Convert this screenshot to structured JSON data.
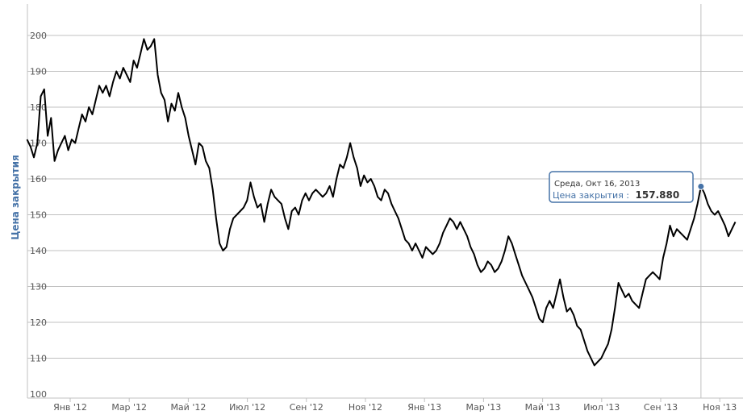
{
  "chart_data": {
    "type": "line",
    "ylabel": "Цена закрытия",
    "ylim": [
      100,
      210
    ],
    "y_ticks": [
      100,
      110,
      120,
      130,
      140,
      150,
      160,
      170,
      180,
      190,
      200
    ],
    "x_ticks": [
      "Янв '12",
      "Мар '12",
      "Май '12",
      "Июл '12",
      "Сен '12",
      "Ноя '12",
      "Янв '13",
      "Мар '13",
      "Май '13",
      "Июл '13",
      "Сен '13",
      "Ноя '13"
    ],
    "grid": true,
    "line_color": "#000000",
    "series": [
      {
        "values": [
          [
            0,
            171
          ],
          [
            1,
            169
          ],
          [
            2,
            166
          ],
          [
            3,
            170
          ],
          [
            4,
            183
          ],
          [
            5,
            185
          ],
          [
            6,
            172
          ],
          [
            7,
            177
          ],
          [
            8,
            165
          ],
          [
            9,
            168
          ],
          [
            10,
            170
          ],
          [
            11,
            172
          ],
          [
            12,
            168
          ],
          [
            13,
            171
          ],
          [
            14,
            170
          ],
          [
            15,
            174
          ],
          [
            16,
            178
          ],
          [
            17,
            176
          ],
          [
            18,
            180
          ],
          [
            19,
            178
          ],
          [
            20,
            182
          ],
          [
            21,
            186
          ],
          [
            22,
            184
          ],
          [
            23,
            186
          ],
          [
            24,
            183
          ],
          [
            25,
            187
          ],
          [
            26,
            190
          ],
          [
            27,
            188
          ],
          [
            28,
            191
          ],
          [
            29,
            189
          ],
          [
            30,
            187
          ],
          [
            31,
            193
          ],
          [
            32,
            191
          ],
          [
            33,
            195
          ],
          [
            34,
            199
          ],
          [
            35,
            196
          ],
          [
            36,
            197
          ],
          [
            37,
            199
          ],
          [
            38,
            189
          ],
          [
            39,
            184
          ],
          [
            40,
            182
          ],
          [
            41,
            176
          ],
          [
            42,
            181
          ],
          [
            43,
            179
          ],
          [
            44,
            184
          ],
          [
            45,
            180
          ],
          [
            46,
            177
          ],
          [
            47,
            172
          ],
          [
            48,
            168
          ],
          [
            49,
            164
          ],
          [
            50,
            170
          ],
          [
            51,
            169
          ],
          [
            52,
            165
          ],
          [
            53,
            163
          ],
          [
            54,
            157
          ],
          [
            55,
            149
          ],
          [
            56,
            142
          ],
          [
            57,
            140
          ],
          [
            58,
            141
          ],
          [
            59,
            146
          ],
          [
            60,
            149
          ],
          [
            61,
            150
          ],
          [
            62,
            151
          ],
          [
            63,
            152
          ],
          [
            64,
            154
          ],
          [
            65,
            159
          ],
          [
            66,
            155
          ],
          [
            67,
            152
          ],
          [
            68,
            153
          ],
          [
            69,
            148
          ],
          [
            70,
            153
          ],
          [
            71,
            157
          ],
          [
            72,
            155
          ],
          [
            73,
            154
          ],
          [
            74,
            153
          ],
          [
            75,
            149
          ],
          [
            76,
            146
          ],
          [
            77,
            151
          ],
          [
            78,
            152
          ],
          [
            79,
            150
          ],
          [
            80,
            154
          ],
          [
            81,
            156
          ],
          [
            82,
            154
          ],
          [
            83,
            156
          ],
          [
            84,
            157
          ],
          [
            85,
            156
          ],
          [
            86,
            155
          ],
          [
            87,
            156
          ],
          [
            88,
            158
          ],
          [
            89,
            155
          ],
          [
            90,
            160
          ],
          [
            91,
            164
          ],
          [
            92,
            163
          ],
          [
            93,
            166
          ],
          [
            94,
            170
          ],
          [
            95,
            166
          ],
          [
            96,
            163
          ],
          [
            97,
            158
          ],
          [
            98,
            161
          ],
          [
            99,
            159
          ],
          [
            100,
            160
          ],
          [
            101,
            158
          ],
          [
            102,
            155
          ],
          [
            103,
            154
          ],
          [
            104,
            157
          ],
          [
            105,
            156
          ],
          [
            106,
            153
          ],
          [
            107,
            151
          ],
          [
            108,
            149
          ],
          [
            109,
            146
          ],
          [
            110,
            143
          ],
          [
            111,
            142
          ],
          [
            112,
            140
          ],
          [
            113,
            142
          ],
          [
            114,
            140
          ],
          [
            115,
            138
          ],
          [
            116,
            141
          ],
          [
            117,
            140
          ],
          [
            118,
            139
          ],
          [
            119,
            140
          ],
          [
            120,
            142
          ],
          [
            121,
            145
          ],
          [
            122,
            147
          ],
          [
            123,
            149
          ],
          [
            124,
            148
          ],
          [
            125,
            146
          ],
          [
            126,
            148
          ],
          [
            127,
            146
          ],
          [
            128,
            144
          ],
          [
            129,
            141
          ],
          [
            130,
            139
          ],
          [
            131,
            136
          ],
          [
            132,
            134
          ],
          [
            133,
            135
          ],
          [
            134,
            137
          ],
          [
            135,
            136
          ],
          [
            136,
            134
          ],
          [
            137,
            135
          ],
          [
            138,
            137
          ],
          [
            139,
            140
          ],
          [
            140,
            144
          ],
          [
            141,
            142
          ],
          [
            142,
            139
          ],
          [
            143,
            136
          ],
          [
            144,
            133
          ],
          [
            145,
            131
          ],
          [
            146,
            129
          ],
          [
            147,
            127
          ],
          [
            148,
            124
          ],
          [
            149,
            121
          ],
          [
            150,
            120
          ],
          [
            151,
            124
          ],
          [
            152,
            126
          ],
          [
            153,
            124
          ],
          [
            154,
            128
          ],
          [
            155,
            132
          ],
          [
            156,
            127
          ],
          [
            157,
            123
          ],
          [
            158,
            124
          ],
          [
            159,
            122
          ],
          [
            160,
            119
          ],
          [
            161,
            118
          ],
          [
            162,
            115
          ],
          [
            163,
            112
          ],
          [
            164,
            110
          ],
          [
            165,
            108
          ],
          [
            166,
            109
          ],
          [
            167,
            110
          ],
          [
            168,
            112
          ],
          [
            169,
            114
          ],
          [
            170,
            118
          ],
          [
            171,
            124
          ],
          [
            172,
            131
          ],
          [
            173,
            129
          ],
          [
            174,
            127
          ],
          [
            175,
            128
          ],
          [
            176,
            126
          ],
          [
            177,
            125
          ],
          [
            178,
            124
          ],
          [
            179,
            128
          ],
          [
            180,
            132
          ],
          [
            181,
            133
          ],
          [
            182,
            134
          ],
          [
            183,
            133
          ],
          [
            184,
            132
          ],
          [
            185,
            138
          ],
          [
            186,
            142
          ],
          [
            187,
            147
          ],
          [
            188,
            144
          ],
          [
            189,
            146
          ],
          [
            190,
            145
          ],
          [
            191,
            144
          ],
          [
            192,
            143
          ],
          [
            193,
            146
          ],
          [
            194,
            149
          ],
          [
            195,
            153
          ],
          [
            196,
            157.88
          ],
          [
            197,
            156
          ],
          [
            198,
            153
          ],
          [
            199,
            151
          ],
          [
            200,
            150
          ],
          [
            201,
            151
          ],
          [
            202,
            149
          ],
          [
            203,
            147
          ],
          [
            204,
            144
          ],
          [
            205,
            146
          ],
          [
            206,
            148
          ]
        ]
      }
    ],
    "tooltip": {
      "date": "Среда, Окт 16, 2013",
      "series_name": "Цена закрытия",
      "value": "157.880",
      "point_index": 196
    }
  }
}
